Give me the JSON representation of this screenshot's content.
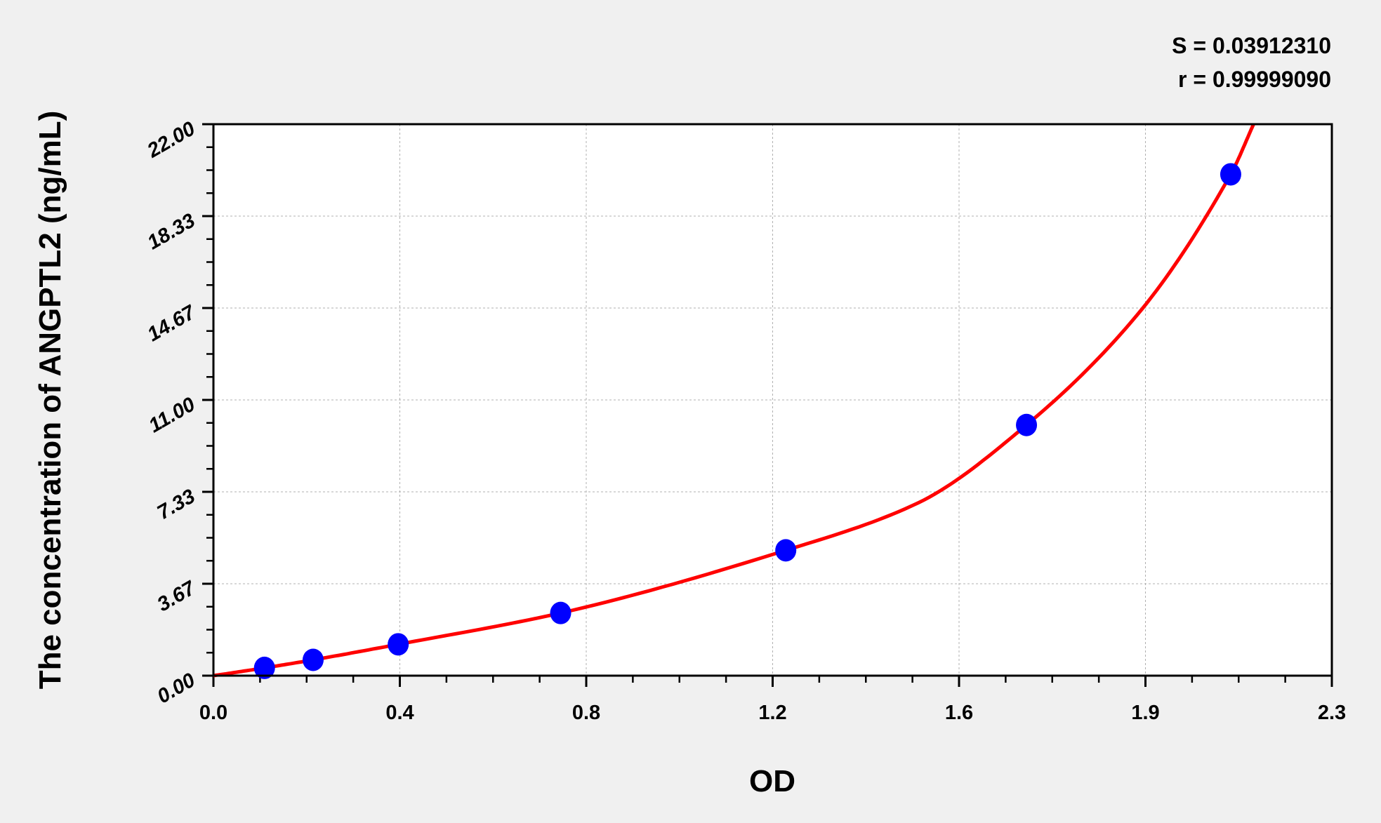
{
  "chart_data": {
    "type": "scatter",
    "title": "",
    "xlabel": "OD",
    "ylabel": "The concentration of ANGPTL2 (ng/mL)",
    "xlim": [
      0,
      2.3
    ],
    "ylim": [
      0,
      22
    ],
    "x_tick_labels": [
      "0.0",
      "0.4",
      "0.8",
      "1.2",
      "1.6",
      "1.9",
      "2.3"
    ],
    "y_tick_labels": [
      "0.00",
      "3.67",
      "7.33",
      "11.00",
      "14.67",
      "18.33",
      "22.00"
    ],
    "grid": true,
    "annotations": {
      "s": "S = 0.03912310",
      "r": "r = 0.99999090"
    },
    "series": [
      {
        "kind": "points",
        "color": "#0000ff",
        "x": [
          0.105,
          0.205,
          0.38,
          0.714,
          1.177,
          1.672,
          2.092
        ],
        "y": [
          0.31,
          0.63,
          1.25,
          2.5,
          5,
          10,
          20
        ]
      },
      {
        "kind": "fit-curve",
        "color": "#ff0000",
        "x": [
          0,
          0.105,
          0.205,
          0.38,
          0.714,
          1.177,
          1.45,
          1.672,
          1.9,
          2.092,
          2.139
        ],
        "y": [
          0,
          0.31,
          0.63,
          1.25,
          2.5,
          5,
          6.9,
          10,
          14.4,
          20,
          22
        ]
      }
    ]
  }
}
